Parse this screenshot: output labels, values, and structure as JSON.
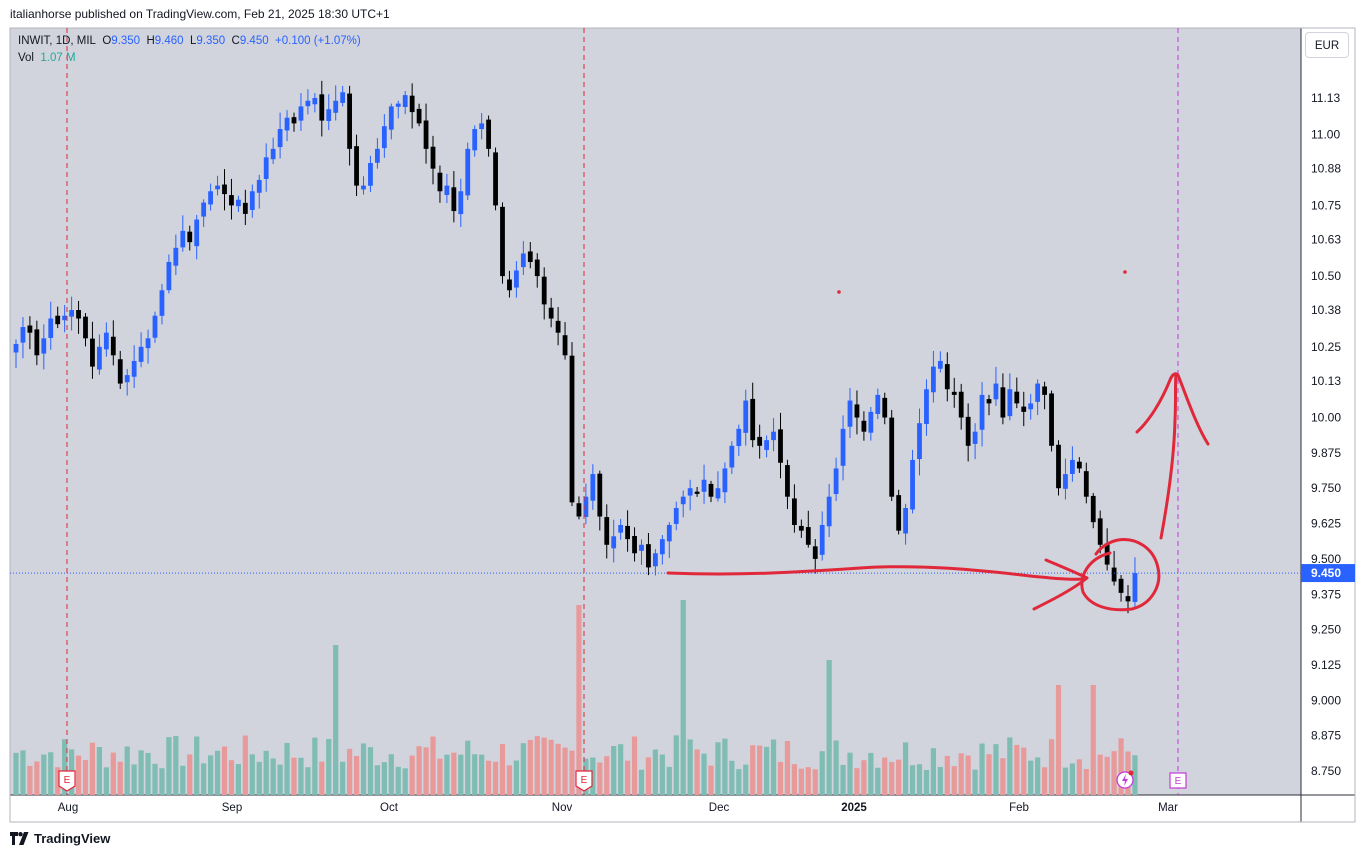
{
  "header": {
    "publisher": "italianhorse published on TradingView.com, Feb 21, 2025 18:30 UTC+1"
  },
  "legend": {
    "symbol": "INWIT, 1D, MIL",
    "o_label": "O",
    "o_value": "9.350",
    "h_label": "H",
    "h_value": "9.460",
    "l_label": "L",
    "l_value": "9.350",
    "c_label": "C",
    "c_value": "9.450",
    "change": "+0.100 (+1.07%)",
    "vol_label": "Vol",
    "vol_value": "1.07 M"
  },
  "currency": "EUR",
  "footer": {
    "brand": "TradingView"
  },
  "colors": {
    "background": "#d1d4dc",
    "up": "#2962ff",
    "down": "#000000",
    "vol_up": "#7ebcb4",
    "vol_down": "#e89a9a",
    "annotation": "#e0283a",
    "earnings_line": "#e0283a",
    "future_line": "#c53ad8",
    "price_label_bg": "#2962ff"
  },
  "chart_data": {
    "type": "candlestick",
    "symbol": "INWIT",
    "timeframe": "1D",
    "exchange": "MIL",
    "currency": "EUR",
    "x_labels": [
      "Aug",
      "Sep",
      "Oct",
      "Nov",
      "Dec",
      "2025",
      "Feb",
      "Mar"
    ],
    "y_ticks": [
      "11.13",
      "11.00",
      "10.88",
      "10.75",
      "10.63",
      "10.50",
      "10.38",
      "10.25",
      "10.13",
      "10.00",
      "9.875",
      "9.750",
      "9.625",
      "9.500",
      "9.375",
      "9.250",
      "9.125",
      "9.000",
      "8.875",
      "8.750"
    ],
    "last_price": "9.450",
    "ylim": [
      8.69,
      11.25
    ],
    "earnings_markers": [
      "E",
      "E"
    ],
    "future_marker": "E",
    "close_series": [
      10.26,
      10.32,
      10.3,
      10.22,
      10.28,
      10.35,
      10.33,
      10.36,
      10.38,
      10.35,
      10.28,
      10.18,
      10.25,
      10.3,
      10.22,
      10.12,
      10.15,
      10.2,
      10.25,
      10.28,
      10.36,
      10.45,
      10.55,
      10.6,
      10.66,
      10.62,
      10.7,
      10.76,
      10.8,
      10.82,
      10.79,
      10.75,
      10.77,
      10.72,
      10.8,
      10.84,
      10.92,
      10.95,
      11.02,
      11.06,
      11.04,
      11.1,
      11.12,
      11.13,
      11.05,
      11.09,
      11.12,
      11.15,
      10.95,
      10.82,
      10.82,
      10.9,
      10.95,
      11.03,
      11.1,
      11.11,
      11.14,
      11.08,
      11.04,
      10.95,
      10.88,
      10.8,
      10.82,
      10.73,
      10.8,
      10.95,
      11.02,
      11.04,
      10.95,
      10.75,
      10.5,
      10.45,
      10.52,
      10.58,
      10.55,
      10.5,
      10.4,
      10.35,
      10.3,
      10.22,
      9.7,
      9.65,
      9.72,
      9.8,
      9.65,
      9.55,
      9.58,
      9.62,
      9.57,
      9.52,
      9.55,
      9.47,
      9.52,
      9.57,
      9.62,
      9.68,
      9.72,
      9.75,
      9.73,
      9.78,
      9.72,
      9.75,
      9.82,
      9.9,
      9.96,
      10.06,
      9.92,
      9.9,
      9.92,
      9.95,
      9.84,
      9.72,
      9.62,
      9.6,
      9.55,
      9.5,
      9.62,
      9.72,
      9.82,
      9.96,
      10.06,
      10.0,
      9.95,
      10.02,
      10.08,
      10.0,
      9.72,
      9.6,
      9.68,
      9.85,
      9.98,
      10.1,
      10.18,
      10.2,
      10.1,
      10.08,
      10.0,
      9.9,
      9.95,
      10.08,
      10.05,
      10.12,
      10.0,
      10.1,
      10.05,
      10.02,
      10.05,
      10.12,
      10.08,
      9.9,
      9.75,
      9.8,
      9.85,
      9.82,
      9.72,
      9.63,
      9.55,
      9.48,
      9.42,
      9.38,
      9.35,
      9.45
    ],
    "volume_note": "Volume histogram, Vol 1.07 M on last bar"
  }
}
